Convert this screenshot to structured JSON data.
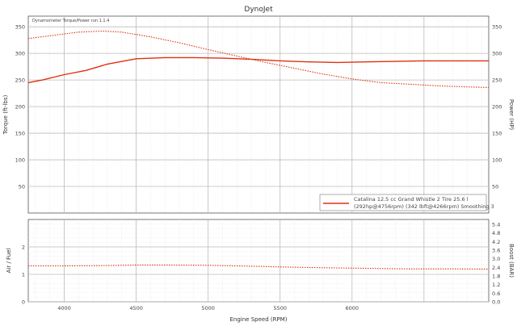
{
  "window": {
    "title": "DynoJet"
  },
  "chart_data": [
    {
      "type": "line",
      "title": "DynoJet",
      "subtitle": "Dynamometer Torque/Power run 1.1.4",
      "xlabel": "",
      "ylabel_left": "Torque (ft-lbs)",
      "ylabel_right": "Power (HP)",
      "xlim": [
        3750,
        6950
      ],
      "ylim": [
        0,
        370
      ],
      "ylim_right": [
        0,
        370
      ],
      "yticks": [
        50,
        100,
        150,
        200,
        250,
        300,
        350
      ],
      "ytick_labels": [
        "50",
        "100",
        "150",
        "200",
        "250",
        "300",
        "350"
      ],
      "xticks": [
        4000,
        4500,
        5000,
        5500,
        6000
      ],
      "grid": true,
      "legend_position": "bottom-right",
      "legend_lines": [
        "Catalina 12.5 cc Grand Whistle 2 Tire 25.6 l",
        "(292hp@4756rpm) (342 lbft@4266rpm) Smoothing 3"
      ],
      "series": [
        {
          "name": "Power",
          "style": "solid",
          "x": [
            3750,
            3850,
            4000,
            4150,
            4300,
            4500,
            4700,
            4900,
            5100,
            5300,
            5500,
            5700,
            5900,
            6100,
            6300,
            6500,
            6700,
            6950
          ],
          "values": [
            245,
            250,
            260,
            268,
            280,
            290,
            292,
            292,
            291,
            289,
            286,
            284,
            283,
            284,
            285,
            286,
            286,
            286
          ]
        },
        {
          "name": "Torque",
          "style": "dotted",
          "x": [
            3750,
            3900,
            4100,
            4266,
            4400,
            4600,
            4800,
            5000,
            5200,
            5400,
            5600,
            5800,
            6000,
            6200,
            6400,
            6600,
            6800,
            6950
          ],
          "values": [
            328,
            333,
            340,
            342,
            340,
            331,
            320,
            307,
            295,
            283,
            272,
            261,
            252,
            245,
            242,
            239,
            237,
            236
          ]
        }
      ]
    },
    {
      "type": "line",
      "xlabel": "Engine Speed (RPM)",
      "ylabel_left": "Air / Fuel",
      "ylabel_right": "Boost (BAR)",
      "xlim": [
        3750,
        6950
      ],
      "ylim": [
        0,
        30
      ],
      "yticks": [
        0,
        10,
        20
      ],
      "ytick_labels": [
        "0",
        "1",
        "2"
      ],
      "ytick_labels_right": [
        "0.0",
        "0.6",
        "1.2",
        "1.8",
        "2.4",
        "3.0",
        "3.6",
        "4.2",
        "4.8",
        "5.4"
      ],
      "xticks": [
        4000,
        4500,
        5000,
        5500,
        6000
      ],
      "xtick_labels": [
        "4000",
        "4500",
        "5000",
        "5500",
        "6000"
      ],
      "grid": true,
      "series": [
        {
          "name": "Air / Fuel",
          "style": "dotted",
          "x": [
            3750,
            4000,
            4300,
            4500,
            4700,
            5000,
            5200,
            5500,
            5800,
            6100,
            6400,
            6700,
            6950
          ],
          "values": [
            13.1,
            13.1,
            13.2,
            13.4,
            13.4,
            13.3,
            13.1,
            12.7,
            12.4,
            12.2,
            12.0,
            12.0,
            11.9
          ]
        }
      ]
    }
  ]
}
